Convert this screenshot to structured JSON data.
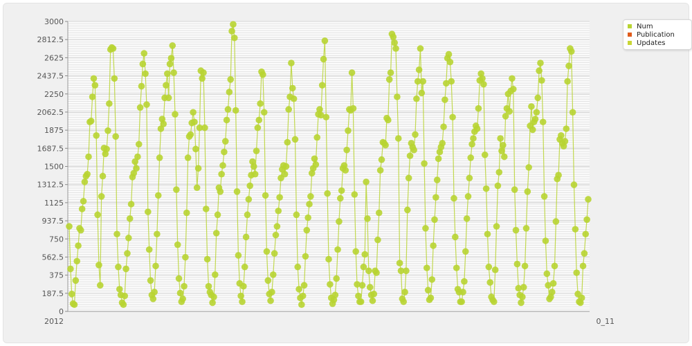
{
  "chart_data": {
    "type": "line",
    "title": "",
    "xlabel": "",
    "ylabel": "",
    "ylim": [
      0,
      3000
    ],
    "yticks": [
      "0",
      "187.5",
      "375",
      "562.5",
      "750",
      "937.5",
      "1125",
      "1312.5",
      "1500",
      "1687.5",
      "1875",
      "2062.5",
      "2250",
      "2437.5",
      "2625",
      "2812.5",
      "3000"
    ],
    "x_tick_first": "2012",
    "x_tick_last": "0_11",
    "grid": true,
    "legend_position": "top-right",
    "series": [
      {
        "name": "Num",
        "color": "#b8d432",
        "values": [
          880,
          440,
          180,
          80,
          70,
          320,
          520,
          680,
          860,
          840,
          1060,
          1140,
          1340,
          1400,
          1420,
          1600,
          1960,
          1970,
          2220,
          2410,
          2340,
          1820,
          1000,
          480,
          270,
          1190,
          1400,
          1690,
          1630,
          1680,
          1870,
          2150,
          2710,
          2730,
          2720,
          2410,
          1810,
          800,
          460,
          230,
          170,
          90,
          70,
          160,
          440,
          600,
          760,
          960,
          1110,
          1390,
          1430,
          1550,
          1480,
          1600,
          1730,
          2110,
          2330,
          2560,
          2670,
          2460,
          2140,
          1030,
          640,
          320,
          170,
          130,
          200,
          470,
          800,
          1200,
          1590,
          1890,
          1990,
          1940,
          2210,
          2340,
          2460,
          2210,
          2560,
          2620,
          2750,
          2470,
          2040,
          1260,
          690,
          340,
          190,
          100,
          130,
          260,
          560,
          1020,
          1590,
          1810,
          1830,
          1950,
          2060,
          1960,
          1680,
          1280,
          1480,
          1900,
          2490,
          2410,
          2470,
          1900,
          1060,
          540,
          260,
          200,
          170,
          90,
          150,
          380,
          810,
          1000,
          1280,
          1240,
          1420,
          1510,
          1650,
          1760,
          1980,
          2090,
          2270,
          2400,
          2900,
          2970,
          2830,
          2080,
          1240,
          580,
          290,
          160,
          100,
          260,
          460,
          770,
          1000,
          1160,
          1300,
          1410,
          1550,
          1500,
          1420,
          1660,
          1900,
          1980,
          2150,
          2480,
          2450,
          2060,
          1200,
          620,
          320,
          180,
          110,
          200,
          380,
          600,
          790,
          880,
          1040,
          1180,
          1380,
          1470,
          1510,
          1420,
          1500,
          1750,
          2090,
          2220,
          2570,
          2310,
          2200,
          1780,
          1000,
          460,
          230,
          140,
          70,
          160,
          270,
          570,
          840,
          970,
          1110,
          1190,
          1430,
          1480,
          1580,
          1520,
          1800,
          2040,
          2090,
          2030,
          2340,
          2610,
          2800,
          2010,
          1220,
          540,
          280,
          140,
          80,
          120,
          170,
          340,
          640,
          930,
          1170,
          1250,
          1480,
          1510,
          1460,
          1670,
          1870,
          2090,
          2080,
          2470,
          2100,
          1210,
          620,
          280,
          160,
          100,
          100,
          270,
          460,
          590,
          1340,
          960,
          420,
          250,
          170,
          110,
          180,
          420,
          400,
          740,
          1020,
          1460,
          1570,
          1750,
          1740,
          1720,
          2000,
          1980,
          2400,
          2470,
          2870,
          2840,
          2780,
          2720,
          2220,
          1790,
          500,
          420,
          130,
          100,
          200,
          420,
          1050,
          1380,
          1610,
          1740,
          1700,
          1670,
          1830,
          2200,
          2380,
          2500,
          2720,
          2260,
          2380,
          1530,
          860,
          450,
          220,
          120,
          140,
          330,
          680,
          950,
          1180,
          1360,
          1580,
          1650,
          1700,
          1740,
          1910,
          2190,
          2360,
          2620,
          2660,
          2580,
          2380,
          2010,
          1170,
          770,
          450,
          230,
          200,
          100,
          100,
          200,
          310,
          620,
          960,
          1190,
          1380,
          1590,
          1730,
          1790,
          1860,
          1920,
          1890,
          2100,
          2390,
          2460,
          2410,
          2350,
          1620,
          1270,
          800,
          460,
          300,
          150,
          120,
          100,
          430,
          880,
          1300,
          1440,
          1790,
          1660,
          1720,
          1600,
          2020,
          2100,
          2250,
          2070,
          2280,
          2410,
          2300,
          1260,
          840,
          490,
          240,
          170,
          90,
          150,
          250,
          470,
          860,
          1240,
          1490,
          1920,
          2120,
          1880,
          1960,
          1990,
          2060,
          2210,
          2490,
          2570,
          2390,
          1960,
          1190,
          730,
          390,
          270,
          130,
          150,
          200,
          290,
          470,
          930,
          1370,
          1410,
          1780,
          1820,
          1740,
          1710,
          1760,
          1890,
          2380,
          2540,
          2720,
          2690,
          2060,
          1310,
          850,
          400,
          180,
          100,
          90,
          140,
          470,
          600,
          800,
          950,
          1160
        ]
      },
      {
        "name": "Publication",
        "color": "#e05c1c",
        "values": []
      },
      {
        "name": "Updates",
        "color": "#c9d636",
        "values": []
      }
    ]
  }
}
